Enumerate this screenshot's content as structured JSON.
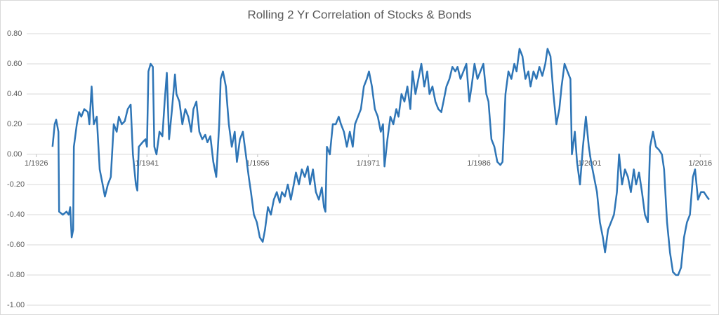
{
  "chart_data": {
    "type": "line",
    "title": "Rolling 2 Yr Correlation of Stocks & Bonds",
    "xlim": [
      1924.7,
      2017.4
    ],
    "xticks": [
      {
        "value": 1926,
        "label": "1/1926"
      },
      {
        "value": 1941,
        "label": "1/1941"
      },
      {
        "value": 1956,
        "label": "1/1956"
      },
      {
        "value": 1971,
        "label": "1/1971"
      },
      {
        "value": 1986,
        "label": "1/1986"
      },
      {
        "value": 2001,
        "label": "1/2001"
      },
      {
        "value": 2016,
        "label": "1/2016"
      }
    ],
    "ylim": [
      -1,
      0.8
    ],
    "yticks": [
      {
        "value": 0.8,
        "label": "0.80"
      },
      {
        "value": 0.6,
        "label": "0.60"
      },
      {
        "value": 0.4,
        "label": "0.40"
      },
      {
        "value": 0.2,
        "label": "0.20"
      },
      {
        "value": 0,
        "label": "0.00"
      },
      {
        "value": -0.2,
        "label": "-0.20"
      },
      {
        "value": -0.4,
        "label": "-0.40"
      },
      {
        "value": -0.6,
        "label": "-0.60"
      },
      {
        "value": -0.8,
        "label": "-0.80"
      },
      {
        "value": -1,
        "label": "-1.00"
      }
    ],
    "grid": true,
    "series": [
      {
        "color": "#2e75b6",
        "x": [
          1928.2,
          1928.5,
          1928.7,
          1929.0,
          1929.1,
          1929.6,
          1930.1,
          1930.4,
          1930.6,
          1930.8,
          1931.0,
          1931.1,
          1931.5,
          1931.8,
          1932.1,
          1932.5,
          1933.0,
          1933.2,
          1933.5,
          1933.8,
          1934.2,
          1934.6,
          1935.0,
          1935.3,
          1935.7,
          1936.1,
          1936.5,
          1936.9,
          1937.2,
          1937.6,
          1938.0,
          1938.4,
          1938.8,
          1939.1,
          1939.5,
          1939.7,
          1939.9,
          1940.4,
          1940.8,
          1941.0,
          1941.2,
          1941.5,
          1941.8,
          1942.0,
          1942.3,
          1942.7,
          1943.1,
          1943.4,
          1943.7,
          1944.0,
          1944.4,
          1944.8,
          1945.0,
          1945.4,
          1945.8,
          1946.2,
          1946.6,
          1947.0,
          1947.3,
          1947.7,
          1948.1,
          1948.5,
          1948.9,
          1949.2,
          1949.6,
          1950.0,
          1950.4,
          1950.8,
          1951.0,
          1951.3,
          1951.7,
          1952.1,
          1952.5,
          1952.9,
          1953.2,
          1953.6,
          1954.0,
          1954.4,
          1954.8,
          1955.1,
          1955.5,
          1955.9,
          1956.3,
          1956.7,
          1957.0,
          1957.4,
          1957.8,
          1958.2,
          1958.6,
          1959.0,
          1959.3,
          1959.7,
          1960.1,
          1960.5,
          1960.9,
          1961.2,
          1961.6,
          1962.0,
          1962.4,
          1962.8,
          1963.1,
          1963.5,
          1963.9,
          1964.3,
          1964.7,
          1965.0,
          1965.2,
          1965.4,
          1965.8,
          1966.2,
          1966.6,
          1967.0,
          1967.3,
          1967.7,
          1968.1,
          1968.5,
          1968.9,
          1969.2,
          1969.6,
          1970.0,
          1970.4,
          1970.8,
          1971.1,
          1971.5,
          1971.9,
          1972.3,
          1972.7,
          1973.0,
          1973.2,
          1973.6,
          1974.0,
          1974.4,
          1974.8,
          1975.1,
          1975.5,
          1975.9,
          1976.3,
          1976.7,
          1977.0,
          1977.4,
          1977.8,
          1978.2,
          1978.6,
          1979.0,
          1979.3,
          1979.7,
          1980.1,
          1980.5,
          1980.9,
          1981.2,
          1981.6,
          1982.0,
          1982.4,
          1982.8,
          1983.1,
          1983.5,
          1983.9,
          1984.3,
          1984.7,
          1985.0,
          1985.4,
          1985.8,
          1986.2,
          1986.6,
          1987.0,
          1987.3,
          1987.7,
          1988.1,
          1988.5,
          1988.9,
          1989.2,
          1989.6,
          1990.0,
          1990.4,
          1990.8,
          1991.1,
          1991.5,
          1991.9,
          1992.3,
          1992.7,
          1993.0,
          1993.4,
          1993.8,
          1994.2,
          1994.6,
          1995.0,
          1995.3,
          1995.7,
          1996.1,
          1996.5,
          1996.9,
          1997.2,
          1997.6,
          1998.0,
          1998.4,
          1998.6,
          1999.0,
          1999.3,
          1999.7,
          2000.1,
          2000.5,
          2000.9,
          2001.2,
          2001.6,
          2002.0,
          2002.4,
          2002.8,
          2003.1,
          2003.5,
          2003.9,
          2004.3,
          2004.7,
          2005.0,
          2005.4,
          2005.8,
          2006.2,
          2006.6,
          2007.0,
          2007.3,
          2007.7,
          2008.1,
          2008.5,
          2008.9,
          2009.2,
          2009.6,
          2010.0,
          2010.4,
          2010.8,
          2011.1,
          2011.5,
          2011.9,
          2012.3,
          2012.7,
          2013.0,
          2013.4,
          2013.8,
          2014.2,
          2014.6,
          2015.0,
          2015.3,
          2015.7,
          2016.1,
          2016.5,
          2016.9,
          2017.2
        ],
        "values": [
          0.05,
          0.2,
          0.23,
          0.15,
          -0.38,
          -0.4,
          -0.38,
          -0.4,
          -0.35,
          -0.55,
          -0.5,
          0.05,
          0.2,
          0.28,
          0.25,
          0.3,
          0.28,
          0.2,
          0.45,
          0.2,
          0.25,
          -0.1,
          -0.2,
          -0.28,
          -0.2,
          -0.15,
          0.2,
          0.15,
          0.25,
          0.2,
          0.22,
          0.3,
          0.33,
          0.0,
          -0.2,
          -0.24,
          0.05,
          0.08,
          0.1,
          0.05,
          0.55,
          0.6,
          0.58,
          0.05,
          0.0,
          0.15,
          0.12,
          0.35,
          0.54,
          0.1,
          0.3,
          0.53,
          0.4,
          0.35,
          0.2,
          0.3,
          0.25,
          0.15,
          0.3,
          0.35,
          0.15,
          0.1,
          0.13,
          0.08,
          0.12,
          -0.05,
          -0.15,
          0.2,
          0.5,
          0.55,
          0.45,
          0.2,
          0.05,
          0.15,
          -0.05,
          0.1,
          0.15,
          0.0,
          -0.15,
          -0.25,
          -0.4,
          -0.45,
          -0.55,
          -0.58,
          -0.5,
          -0.35,
          -0.4,
          -0.3,
          -0.25,
          -0.32,
          -0.25,
          -0.28,
          -0.2,
          -0.3,
          -0.2,
          -0.12,
          -0.2,
          -0.1,
          -0.15,
          -0.08,
          -0.2,
          -0.1,
          -0.25,
          -0.3,
          -0.22,
          -0.35,
          -0.38,
          0.05,
          0.0,
          0.2,
          0.2,
          0.25,
          0.2,
          0.15,
          0.05,
          0.15,
          0.05,
          0.2,
          0.25,
          0.3,
          0.45,
          0.5,
          0.55,
          0.45,
          0.3,
          0.25,
          0.15,
          0.2,
          -0.08,
          0.1,
          0.25,
          0.2,
          0.3,
          0.25,
          0.4,
          0.35,
          0.45,
          0.3,
          0.55,
          0.4,
          0.5,
          0.6,
          0.45,
          0.55,
          0.4,
          0.45,
          0.35,
          0.3,
          0.28,
          0.35,
          0.45,
          0.5,
          0.58,
          0.55,
          0.58,
          0.5,
          0.55,
          0.6,
          0.35,
          0.45,
          0.6,
          0.5,
          0.55,
          0.6,
          0.4,
          0.35,
          0.1,
          0.05,
          -0.05,
          -0.07,
          -0.05,
          0.4,
          0.55,
          0.5,
          0.6,
          0.55,
          0.7,
          0.65,
          0.5,
          0.55,
          0.45,
          0.55,
          0.5,
          0.58,
          0.52,
          0.6,
          0.7,
          0.65,
          0.4,
          0.2,
          0.3,
          0.45,
          0.6,
          0.55,
          0.5,
          0.0,
          0.15,
          -0.05,
          -0.2,
          0.05,
          0.25,
          0.05,
          -0.05,
          -0.15,
          -0.25,
          -0.45,
          -0.55,
          -0.65,
          -0.5,
          -0.45,
          -0.4,
          -0.25,
          0.0,
          -0.2,
          -0.1,
          -0.15,
          -0.25,
          -0.1,
          -0.2,
          -0.12,
          -0.25,
          -0.4,
          -0.45,
          0.05,
          0.15,
          0.05,
          0.03,
          0.0,
          -0.1,
          -0.45,
          -0.65,
          -0.78,
          -0.8,
          -0.8,
          -0.75,
          -0.55,
          -0.45,
          -0.4,
          -0.15,
          -0.1,
          -0.3,
          -0.25,
          -0.25,
          -0.28,
          -0.3
        ]
      }
    ]
  }
}
